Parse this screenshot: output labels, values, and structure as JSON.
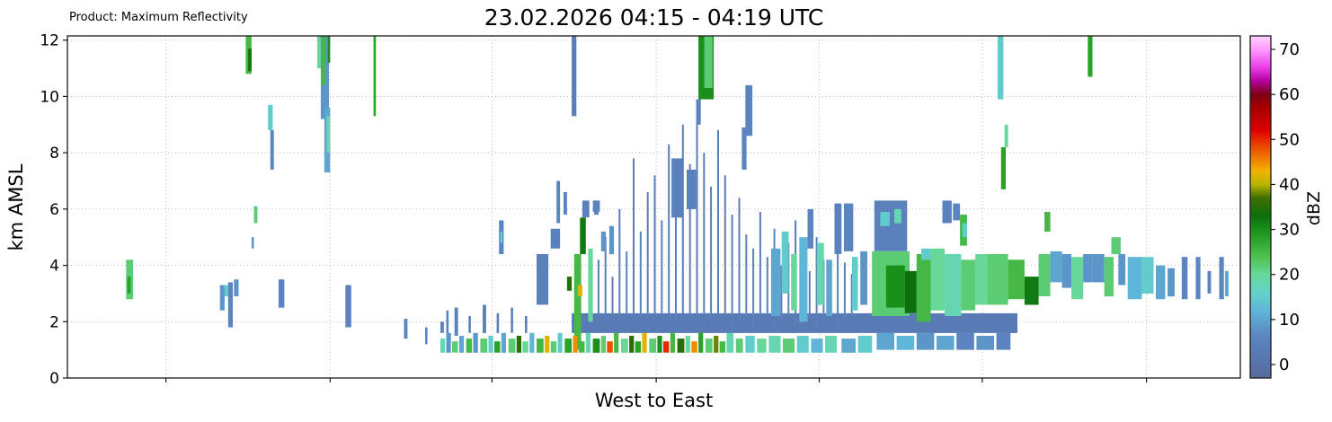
{
  "header": {
    "title": "23.02.2026 04:15 - 04:19 UTC",
    "product_label": "Product: Maximum Reflectivity"
  },
  "chart_data": {
    "type": "heatmap",
    "title": "23.02.2026 04:15 - 04:19 UTC",
    "subtitle": "Product: Maximum Reflectivity",
    "xlabel": "West to East",
    "ylabel": "km AMSL",
    "ylim": [
      0,
      12.15
    ],
    "yticks": [
      0,
      2,
      4,
      6,
      8,
      10,
      12
    ],
    "x_gridlines": [
      0.084,
      0.224,
      0.362,
      0.502,
      0.641,
      0.78,
      0.92
    ],
    "grid": "dotted",
    "colorbar": {
      "label": "dBZ",
      "ticks": [
        0,
        10,
        20,
        30,
        40,
        50,
        60,
        70
      ],
      "domain": [
        -3,
        73
      ],
      "stops": [
        [
          -3,
          "#566a9e"
        ],
        [
          6,
          "#5b84c0"
        ],
        [
          12,
          "#5fb6d8"
        ],
        [
          16,
          "#63d3c8"
        ],
        [
          20,
          "#67d89a"
        ],
        [
          24,
          "#4ec04e"
        ],
        [
          29,
          "#1f9a1f"
        ],
        [
          33,
          "#0c6e0c"
        ],
        [
          37,
          "#3d6f00"
        ],
        [
          40,
          "#b9b400"
        ],
        [
          43,
          "#f2b200"
        ],
        [
          46,
          "#f07800"
        ],
        [
          49,
          "#ea3d00"
        ],
        [
          52,
          "#dd0000"
        ],
        [
          57,
          "#a80000"
        ],
        [
          60,
          "#7a0011"
        ],
        [
          63,
          "#b4009e"
        ],
        [
          66,
          "#e93ee9"
        ],
        [
          70,
          "#ff9bff"
        ],
        [
          73,
          "#ffd1ff"
        ]
      ]
    },
    "echo_format": [
      "x_frac",
      "w_frac",
      "y0_km",
      "y1_km",
      "dBZ"
    ],
    "echoes": [
      [
        0.43,
        0.38,
        1.6,
        2.3,
        3
      ],
      [
        0.05,
        0.006,
        2.8,
        4.2,
        22
      ],
      [
        0.051,
        0.003,
        3.0,
        3.6,
        28
      ],
      [
        0.13,
        0.004,
        2.4,
        3.3,
        8
      ],
      [
        0.134,
        0.003,
        2.9,
        3.3,
        15
      ],
      [
        0.137,
        0.004,
        1.8,
        3.4,
        6
      ],
      [
        0.142,
        0.004,
        2.9,
        3.5,
        8
      ],
      [
        0.152,
        0.005,
        10.8,
        12.2,
        25
      ],
      [
        0.154,
        0.003,
        10.9,
        11.7,
        32
      ],
      [
        0.159,
        0.003,
        5.5,
        6.1,
        22
      ],
      [
        0.157,
        0.002,
        4.6,
        5.0,
        8
      ],
      [
        0.171,
        0.004,
        8.8,
        9.7,
        15
      ],
      [
        0.173,
        0.003,
        7.4,
        8.8,
        6
      ],
      [
        0.18,
        0.005,
        2.5,
        3.5,
        6
      ],
      [
        0.213,
        0.005,
        11.0,
        12.2,
        20
      ],
      [
        0.216,
        0.007,
        9.2,
        12.2,
        8
      ],
      [
        0.219,
        0.005,
        7.3,
        9.6,
        10
      ],
      [
        0.221,
        0.003,
        8.0,
        9.3,
        18
      ],
      [
        0.217,
        0.003,
        10.4,
        12.2,
        25
      ],
      [
        0.222,
        0.002,
        11.2,
        12.2,
        30
      ],
      [
        0.237,
        0.005,
        1.8,
        3.3,
        6
      ],
      [
        0.261,
        0.002,
        9.3,
        12.2,
        28
      ],
      [
        0.287,
        0.003,
        1.4,
        2.1,
        6
      ],
      [
        0.305,
        0.002,
        1.2,
        1.8,
        6
      ],
      [
        0.318,
        0.003,
        1.6,
        2.0,
        6
      ],
      [
        0.323,
        0.002,
        1.6,
        2.4,
        6
      ],
      [
        0.33,
        0.003,
        1.5,
        2.5,
        5
      ],
      [
        0.342,
        0.002,
        1.6,
        2.2,
        5
      ],
      [
        0.354,
        0.003,
        1.6,
        2.6,
        5
      ],
      [
        0.366,
        0.002,
        1.6,
        2.3,
        5
      ],
      [
        0.368,
        0.004,
        4.4,
        5.6,
        6
      ],
      [
        0.369,
        0.002,
        4.8,
        5.2,
        15
      ],
      [
        0.378,
        0.002,
        1.6,
        2.5,
        5
      ],
      [
        0.39,
        0.002,
        1.6,
        2.2,
        5
      ],
      [
        0.4,
        0.01,
        2.6,
        4.4,
        5
      ],
      [
        0.412,
        0.008,
        4.6,
        5.3,
        5
      ],
      [
        0.417,
        0.003,
        5.5,
        7.0,
        6
      ],
      [
        0.423,
        0.003,
        5.8,
        6.6,
        6
      ],
      [
        0.426,
        0.004,
        3.1,
        3.6,
        35
      ],
      [
        0.43,
        0.004,
        9.3,
        12.2,
        4
      ],
      [
        0.432,
        0.006,
        1.0,
        4.4,
        25
      ],
      [
        0.435,
        0.004,
        2.9,
        3.3,
        42
      ],
      [
        0.437,
        0.005,
        4.4,
        5.7,
        32
      ],
      [
        0.439,
        0.006,
        5.7,
        6.3,
        5
      ],
      [
        0.444,
        0.004,
        2.0,
        4.6,
        20
      ],
      [
        0.448,
        0.006,
        5.9,
        6.3,
        6
      ],
      [
        0.452,
        0.0015,
        2.2,
        4.2,
        5
      ],
      [
        0.458,
        0.0015,
        2.0,
        5.0,
        4
      ],
      [
        0.464,
        0.0015,
        2.2,
        3.6,
        5
      ],
      [
        0.47,
        0.0015,
        1.8,
        6.0,
        4
      ],
      [
        0.476,
        0.0015,
        2.2,
        4.5,
        5
      ],
      [
        0.482,
        0.0015,
        2.0,
        7.8,
        4
      ],
      [
        0.488,
        0.0015,
        2.2,
        5.2,
        5
      ],
      [
        0.494,
        0.0015,
        1.8,
        6.6,
        4
      ],
      [
        0.5,
        0.0015,
        2.0,
        7.2,
        4
      ],
      [
        0.506,
        0.0015,
        2.2,
        5.6,
        5
      ],
      [
        0.512,
        0.0015,
        1.8,
        8.3,
        4
      ],
      [
        0.518,
        0.0015,
        2.0,
        6.2,
        5
      ],
      [
        0.524,
        0.0015,
        2.2,
        9.0,
        4
      ],
      [
        0.53,
        0.0015,
        1.8,
        7.6,
        4
      ],
      [
        0.536,
        0.0015,
        2.0,
        9.7,
        4
      ],
      [
        0.542,
        0.0015,
        2.2,
        8.0,
        4
      ],
      [
        0.548,
        0.0015,
        1.8,
        6.8,
        4
      ],
      [
        0.554,
        0.0015,
        2.0,
        8.8,
        4
      ],
      [
        0.56,
        0.0015,
        2.2,
        7.2,
        4
      ],
      [
        0.566,
        0.0015,
        1.8,
        5.8,
        5
      ],
      [
        0.572,
        0.0015,
        2.0,
        6.4,
        4
      ],
      [
        0.578,
        0.0015,
        2.2,
        5.1,
        5
      ],
      [
        0.584,
        0.0015,
        1.8,
        4.6,
        5
      ],
      [
        0.59,
        0.0015,
        2.0,
        5.9,
        4
      ],
      [
        0.596,
        0.0015,
        2.2,
        4.3,
        5
      ],
      [
        0.602,
        0.0015,
        1.8,
        5.3,
        5
      ],
      [
        0.608,
        0.0015,
        2.0,
        4.0,
        5
      ],
      [
        0.614,
        0.0015,
        2.2,
        4.8,
        5
      ],
      [
        0.62,
        0.0015,
        1.8,
        5.6,
        4
      ],
      [
        0.626,
        0.0015,
        2.0,
        4.4,
        5
      ],
      [
        0.632,
        0.0015,
        2.2,
        3.8,
        5
      ],
      [
        0.638,
        0.0015,
        1.8,
        5.0,
        5
      ],
      [
        0.644,
        0.0015,
        2.0,
        4.2,
        5
      ],
      [
        0.65,
        0.0015,
        2.2,
        3.9,
        5
      ],
      [
        0.656,
        0.0015,
        1.8,
        4.7,
        5
      ],
      [
        0.662,
        0.0015,
        2.0,
        4.1,
        5
      ],
      [
        0.668,
        0.0015,
        2.2,
        3.7,
        5
      ],
      [
        0.449,
        0.004,
        5.8,
        6.3,
        6
      ],
      [
        0.455,
        0.004,
        4.5,
        5.2,
        8
      ],
      [
        0.462,
        0.004,
        4.4,
        5.4,
        8
      ],
      [
        0.515,
        0.01,
        5.7,
        7.8,
        5
      ],
      [
        0.528,
        0.008,
        6.0,
        7.4,
        5
      ],
      [
        0.536,
        0.004,
        9.0,
        9.9,
        6
      ],
      [
        0.538,
        0.013,
        9.9,
        12.2,
        30
      ],
      [
        0.543,
        0.007,
        10.3,
        12.2,
        22
      ],
      [
        0.575,
        0.004,
        7.4,
        8.9,
        6
      ],
      [
        0.578,
        0.006,
        8.6,
        10.4,
        6
      ],
      [
        0.6,
        0.008,
        2.2,
        4.6,
        10
      ],
      [
        0.609,
        0.006,
        3.0,
        5.2,
        15
      ],
      [
        0.617,
        0.005,
        2.4,
        4.4,
        20
      ],
      [
        0.624,
        0.007,
        2.0,
        5.0,
        12
      ],
      [
        0.631,
        0.005,
        4.6,
        6.0,
        6
      ],
      [
        0.639,
        0.006,
        2.6,
        4.8,
        18
      ],
      [
        0.647,
        0.005,
        2.2,
        4.2,
        10
      ],
      [
        0.654,
        0.006,
        4.4,
        6.2,
        5
      ],
      [
        0.662,
        0.008,
        4.5,
        6.2,
        6
      ],
      [
        0.669,
        0.005,
        2.4,
        4.3,
        15
      ],
      [
        0.676,
        0.006,
        2.6,
        4.5,
        8
      ],
      [
        0.688,
        0.028,
        4.5,
        6.3,
        5
      ],
      [
        0.693,
        0.008,
        5.4,
        5.9,
        15
      ],
      [
        0.705,
        0.006,
        5.5,
        6.0,
        18
      ],
      [
        0.686,
        0.032,
        2.2,
        4.5,
        22
      ],
      [
        0.698,
        0.016,
        2.5,
        4.0,
        30
      ],
      [
        0.714,
        0.01,
        2.3,
        3.8,
        33
      ],
      [
        0.724,
        0.012,
        2.0,
        4.4,
        25
      ],
      [
        0.736,
        0.012,
        2.4,
        4.6,
        20
      ],
      [
        0.728,
        0.008,
        4.2,
        4.6,
        15
      ],
      [
        0.746,
        0.008,
        5.5,
        6.3,
        5
      ],
      [
        0.755,
        0.006,
        5.6,
        6.2,
        6
      ],
      [
        0.761,
        0.006,
        4.7,
        5.8,
        25
      ],
      [
        0.763,
        0.004,
        5.0,
        5.5,
        15
      ],
      [
        0.748,
        0.014,
        2.2,
        4.4,
        18
      ],
      [
        0.762,
        0.012,
        2.4,
        4.2,
        22
      ],
      [
        0.774,
        0.01,
        2.6,
        4.4,
        20
      ],
      [
        0.793,
        0.005,
        9.9,
        12.2,
        15
      ],
      [
        0.796,
        0.004,
        6.7,
        8.2,
        28
      ],
      [
        0.799,
        0.003,
        8.2,
        9.0,
        20
      ],
      [
        0.833,
        0.005,
        5.2,
        5.9,
        25
      ],
      [
        0.784,
        0.018,
        2.6,
        4.4,
        22
      ],
      [
        0.802,
        0.014,
        2.8,
        4.2,
        25
      ],
      [
        0.816,
        0.012,
        2.6,
        3.6,
        32
      ],
      [
        0.828,
        0.01,
        2.9,
        4.4,
        22
      ],
      [
        0.838,
        0.01,
        3.4,
        4.5,
        10
      ],
      [
        0.848,
        0.008,
        3.2,
        4.4,
        8
      ],
      [
        0.856,
        0.01,
        2.8,
        4.3,
        20
      ],
      [
        0.866,
        0.008,
        3.4,
        4.4,
        8
      ],
      [
        0.87,
        0.004,
        10.7,
        12.2,
        28
      ],
      [
        0.874,
        0.01,
        3.4,
        4.4,
        8
      ],
      [
        0.884,
        0.008,
        2.9,
        4.3,
        22
      ],
      [
        0.89,
        0.008,
        4.4,
        5.0,
        22
      ],
      [
        0.896,
        0.006,
        3.3,
        4.4,
        8
      ],
      [
        0.904,
        0.012,
        2.8,
        4.3,
        12
      ],
      [
        0.916,
        0.01,
        3.0,
        4.3,
        15
      ],
      [
        0.928,
        0.008,
        2.8,
        4.0,
        10
      ],
      [
        0.938,
        0.006,
        2.9,
        3.9,
        8
      ],
      [
        0.95,
        0.005,
        2.8,
        4.3,
        6
      ],
      [
        0.962,
        0.004,
        2.8,
        4.3,
        6
      ],
      [
        0.972,
        0.003,
        3.0,
        3.8,
        6
      ],
      [
        0.982,
        0.004,
        2.8,
        4.3,
        6
      ],
      [
        0.987,
        0.003,
        2.9,
        3.8,
        10
      ],
      [
        0.318,
        0.004,
        0.9,
        1.4,
        18
      ],
      [
        0.323,
        0.004,
        0.9,
        1.6,
        8
      ],
      [
        0.328,
        0.005,
        0.9,
        1.3,
        22
      ],
      [
        0.334,
        0.004,
        0.9,
        1.5,
        10
      ],
      [
        0.34,
        0.005,
        0.9,
        1.4,
        25
      ],
      [
        0.346,
        0.004,
        0.9,
        1.6,
        8
      ],
      [
        0.352,
        0.006,
        0.9,
        1.4,
        22
      ],
      [
        0.359,
        0.004,
        0.9,
        1.5,
        15
      ],
      [
        0.364,
        0.005,
        0.9,
        1.3,
        28
      ],
      [
        0.37,
        0.004,
        0.9,
        1.6,
        10
      ],
      [
        0.376,
        0.006,
        0.9,
        1.4,
        22
      ],
      [
        0.383,
        0.004,
        0.9,
        1.5,
        35
      ],
      [
        0.388,
        0.005,
        0.9,
        1.3,
        20
      ],
      [
        0.394,
        0.004,
        0.9,
        1.6,
        12
      ],
      [
        0.4,
        0.006,
        0.9,
        1.4,
        25
      ],
      [
        0.407,
        0.004,
        0.9,
        1.5,
        42
      ],
      [
        0.412,
        0.005,
        0.9,
        1.3,
        22
      ],
      [
        0.418,
        0.004,
        0.9,
        1.6,
        15
      ],
      [
        0.424,
        0.006,
        0.9,
        1.4,
        28
      ],
      [
        0.431,
        0.004,
        0.9,
        1.5,
        45
      ],
      [
        0.436,
        0.005,
        0.9,
        1.3,
        25
      ],
      [
        0.442,
        0.004,
        0.9,
        1.6,
        18
      ],
      [
        0.448,
        0.006,
        0.9,
        1.4,
        30
      ],
      [
        0.455,
        0.004,
        0.9,
        1.5,
        22
      ],
      [
        0.46,
        0.005,
        0.9,
        1.3,
        48
      ],
      [
        0.466,
        0.004,
        0.9,
        1.6,
        25
      ],
      [
        0.472,
        0.006,
        0.9,
        1.4,
        20
      ],
      [
        0.479,
        0.004,
        0.9,
        1.5,
        35
      ],
      [
        0.484,
        0.005,
        0.9,
        1.3,
        28
      ],
      [
        0.49,
        0.004,
        0.9,
        1.6,
        42
      ],
      [
        0.496,
        0.006,
        0.9,
        1.4,
        22
      ],
      [
        0.503,
        0.004,
        0.9,
        1.5,
        30
      ],
      [
        0.508,
        0.005,
        0.9,
        1.3,
        50
      ],
      [
        0.514,
        0.004,
        0.9,
        1.6,
        25
      ],
      [
        0.52,
        0.006,
        0.9,
        1.4,
        35
      ],
      [
        0.527,
        0.004,
        0.9,
        1.5,
        20
      ],
      [
        0.532,
        0.005,
        0.9,
        1.3,
        45
      ],
      [
        0.538,
        0.004,
        0.9,
        1.6,
        28
      ],
      [
        0.544,
        0.006,
        0.9,
        1.4,
        22
      ],
      [
        0.551,
        0.004,
        0.9,
        1.5,
        38
      ],
      [
        0.556,
        0.005,
        0.9,
        1.3,
        25
      ],
      [
        0.562,
        0.006,
        0.9,
        1.6,
        18
      ],
      [
        0.57,
        0.006,
        0.9,
        1.4,
        22
      ],
      [
        0.578,
        0.008,
        0.9,
        1.5,
        15
      ],
      [
        0.588,
        0.008,
        0.9,
        1.4,
        20
      ],
      [
        0.598,
        0.01,
        0.9,
        1.5,
        18
      ],
      [
        0.61,
        0.01,
        0.9,
        1.4,
        22
      ],
      [
        0.622,
        0.01,
        0.9,
        1.5,
        15
      ],
      [
        0.634,
        0.01,
        0.9,
        1.4,
        12
      ],
      [
        0.646,
        0.01,
        0.9,
        1.5,
        18
      ],
      [
        0.66,
        0.012,
        0.9,
        1.4,
        10
      ],
      [
        0.674,
        0.012,
        0.9,
        1.5,
        15
      ],
      [
        0.69,
        0.015,
        1.0,
        1.6,
        10
      ],
      [
        0.707,
        0.015,
        1.0,
        1.5,
        12
      ],
      [
        0.724,
        0.015,
        1.0,
        1.6,
        8
      ],
      [
        0.741,
        0.015,
        1.0,
        1.5,
        10
      ],
      [
        0.758,
        0.015,
        1.0,
        1.6,
        6
      ],
      [
        0.775,
        0.015,
        1.0,
        1.5,
        8
      ],
      [
        0.792,
        0.012,
        1.0,
        1.6,
        6
      ]
    ]
  }
}
